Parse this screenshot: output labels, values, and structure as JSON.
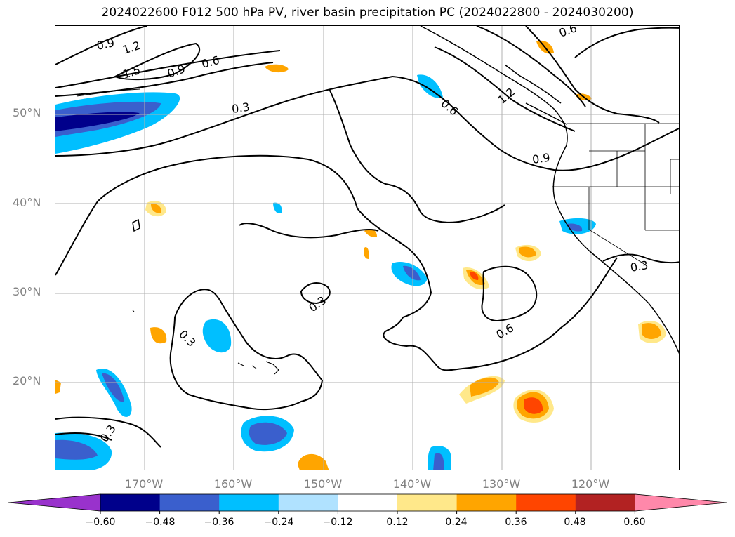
{
  "title": "2024022600 F012 500 hPa PV, river basin precipitation PC (2024022800 - 2024030200)",
  "lat_labels": [
    "50°N",
    "40°N",
    "30°N",
    "20°N"
  ],
  "lon_labels": [
    "170°W",
    "160°W",
    "150°W",
    "140°W",
    "130°W",
    "120°W"
  ],
  "contour_labels": [
    "0.9",
    "1.2",
    "1.5",
    "0.9",
    "0.6",
    "0.3",
    "0.6",
    "0.6",
    "1.2",
    "0.9",
    "0.3",
    "0.3",
    "0.3",
    "0.6",
    "0.3"
  ],
  "colorbar": {
    "ticks": [
      "−0.60",
      "−0.48",
      "−0.36",
      "−0.24",
      "−0.12",
      "0.12",
      "0.24",
      "0.36",
      "0.48",
      "0.60"
    ],
    "colors": [
      "#9932cc",
      "#00008b",
      "#3a5fcd",
      "#00bfff",
      "#b0e2ff",
      "#ffffff",
      "#ffe88a",
      "#ffa500",
      "#ff4500",
      "#b22222",
      "#ff88aa"
    ]
  },
  "colors": {
    "grid": "#b0b0b0",
    "contour": "#000000",
    "axis_label": "#808080"
  }
}
